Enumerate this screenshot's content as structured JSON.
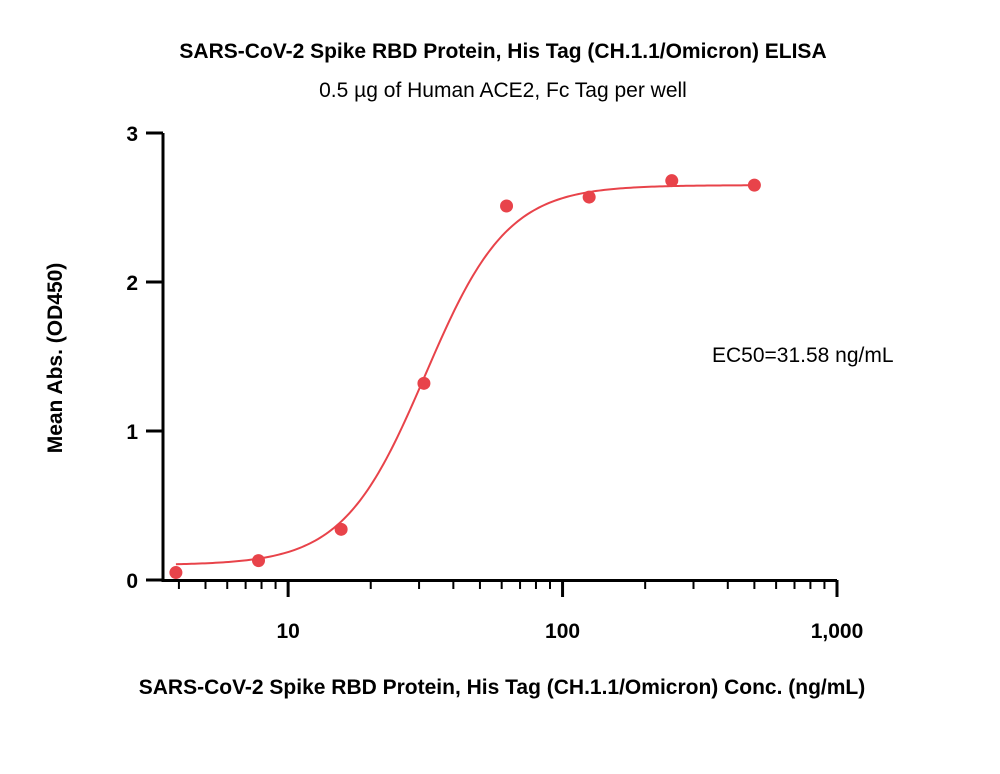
{
  "chart_data": {
    "type": "scatter",
    "title": "SARS-CoV-2 Spike RBD Protein, His Tag (CH.1.1/Omicron) ELISA",
    "subtitle": "0.5 µg of Human ACE2, Fc Tag per well",
    "xlabel": "SARS-CoV-2 Spike RBD Protein, His Tag (CH.1.1/Omicron) Conc. (ng/mL)",
    "ylabel": "Mean Abs. (OD450)",
    "x_scale": "log",
    "xlim": [
      3.5,
      1000
    ],
    "ylim": [
      0,
      3
    ],
    "x_ticks": [
      10,
      100,
      1000
    ],
    "x_tick_labels": [
      "10",
      "100",
      "1,000"
    ],
    "y_ticks": [
      0,
      1,
      2,
      3
    ],
    "y_tick_labels": [
      "0",
      "1",
      "2",
      "3"
    ],
    "grid": false,
    "color": "#e8434a",
    "series": [
      {
        "x": [
          3.9,
          7.8,
          15.6,
          31.25,
          62.5,
          125,
          250,
          500
        ],
        "y": [
          0.05,
          0.13,
          0.34,
          1.32,
          2.51,
          2.57,
          2.68,
          2.65
        ]
      }
    ],
    "fit": {
      "model": "4PL",
      "bottom": 0.1,
      "top": 2.65,
      "ec50": 31.58,
      "hill": 2.9
    },
    "annotation": "EC50=31.58 ng/mL"
  }
}
